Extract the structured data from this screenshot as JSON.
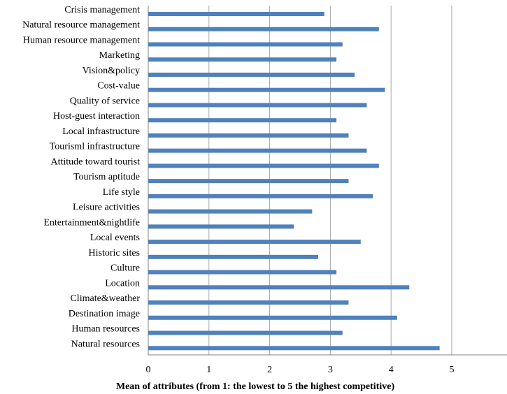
{
  "chart_data": {
    "type": "bar",
    "orientation": "horizontal",
    "categories": [
      "Crisis management",
      "Natural resource management",
      "Human resource management",
      "Marketing",
      "Vision&policy",
      "Cost-value",
      "Quality of service",
      "Host-guest interaction",
      "Local infrastructure",
      "Tourisml infrastructure",
      "Attitude toward tourist",
      "Tourism aptitude",
      "Life style",
      "Leisure activities",
      "Entertainment&nightlife",
      "Local events",
      "Historic sites",
      "Culture",
      "Location",
      "Climate&weather",
      "Destination image",
      "Human resources",
      "Natural resources"
    ],
    "values": [
      2.9,
      3.8,
      3.2,
      3.1,
      3.4,
      3.9,
      3.6,
      3.1,
      3.3,
      3.6,
      3.8,
      3.3,
      3.7,
      2.7,
      2.4,
      3.5,
      2.8,
      3.1,
      4.3,
      3.3,
      4.1,
      3.2,
      4.8
    ],
    "xlabel": "Mean of attributes (from 1: the lowest to 5 the highest competitive)",
    "xlim": [
      0,
      6
    ],
    "xticks": [
      "0",
      "1",
      "2",
      "3",
      "4",
      "5"
    ],
    "grid": "vertical",
    "bar_color": "#4f81bd"
  }
}
